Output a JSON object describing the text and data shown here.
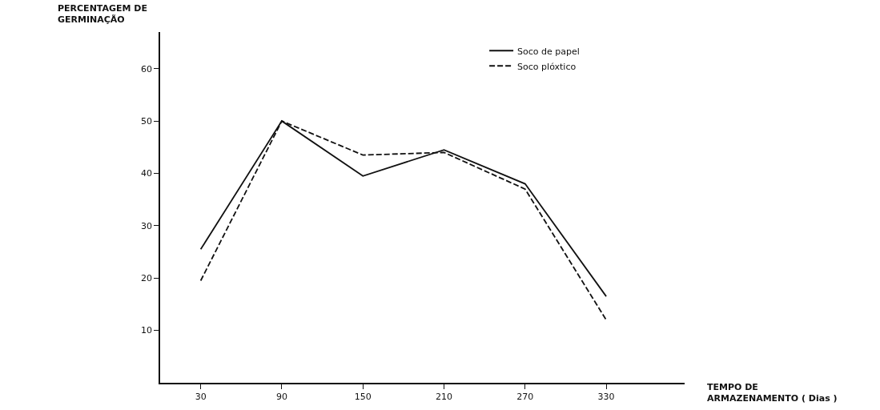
{
  "chart_data": {
    "type": "line",
    "xlabel": "TEMPO DE\nARMAZENAMENTO ( Dias )",
    "ylabel": "PERCENTAGEM DE\nGERMINAÇÃO",
    "x": [
      30,
      90,
      150,
      210,
      270,
      330
    ],
    "series": [
      {
        "name": "Soco de papel",
        "color": "#111111",
        "line_style": "solid",
        "values": [
          25.5,
          50,
          39.5,
          44.5,
          38,
          16.5
        ]
      },
      {
        "name": "Soco plóxtico",
        "color": "#111111",
        "line_style": "dashed",
        "values": [
          19.5,
          50,
          43.5,
          44,
          37,
          12
        ]
      }
    ],
    "xlim": [
      0,
      388
    ],
    "xticks": [
      30,
      90,
      150,
      210,
      270,
      330
    ],
    "ylim": [
      0,
      67
    ],
    "yticks": [
      10,
      20,
      30,
      40,
      50,
      60
    ],
    "grid": false,
    "legend": "top right",
    "marker": "none"
  }
}
